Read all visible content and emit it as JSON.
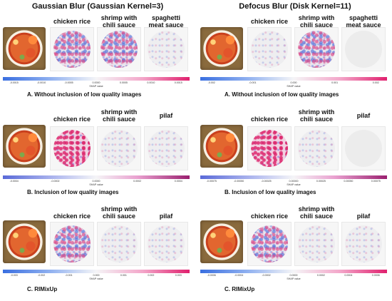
{
  "left": {
    "title": "Gaussian Blur (Gaussian Kernel=3)",
    "panels": [
      {
        "labels": [
          "chicken rice",
          "shrimp with chili sauce",
          "spaghetti meat sauce"
        ],
        "ticks": [
          "-0.0015",
          "-0.0010",
          "-0.0005",
          "0.0000",
          "0.0005",
          "0.0010",
          "0.0015"
        ],
        "cbar_label": "SHAP value",
        "caption": "A.  Without inclusion of low quality images"
      },
      {
        "labels": [
          "chicken rice",
          "shrimp with chili sauce",
          "pilaf"
        ],
        "ticks": [
          "-0.0004",
          "-0.0002",
          "0.0000",
          "0.0002",
          "0.0004"
        ],
        "cbar_label": "SHAP value",
        "caption": "B.   Inclusion of low quality images"
      },
      {
        "labels": [
          "chicken rice",
          "shrimp with chili sauce",
          "pilaf"
        ],
        "ticks": [
          "-0.003",
          "-0.002",
          "-0.001",
          "0.000",
          "0.001",
          "0.002",
          "0.003"
        ],
        "cbar_label": "SHAP value",
        "caption": "C.   RIMixUp"
      }
    ]
  },
  "right": {
    "title": "Defocus Blur (Disk Kernel=11)",
    "panels": [
      {
        "labels": [
          "chicken rice",
          "shrimp with chili sauce",
          "spaghetti meat sauce"
        ],
        "ticks": [
          "-0.002",
          "-0.001",
          "0.000",
          "0.001",
          "0.002"
        ],
        "cbar_label": "SHAP value",
        "caption": "A.  Without inclusion of low quality images"
      },
      {
        "labels": [
          "chicken rice",
          "shrimp with chili sauce",
          "pilaf"
        ],
        "ticks": [
          "-0.00075",
          "-0.00050",
          "-0.00025",
          "0.00000",
          "0.00025",
          "0.00050",
          "0.00075"
        ],
        "cbar_label": "SHAP value",
        "caption": "B.   Inclusion of low quality images"
      },
      {
        "labels": [
          "chicken rice",
          "shrimp with chili sauce",
          "pilaf"
        ],
        "ticks": [
          "-0.0006",
          "-0.0004",
          "-0.0002",
          "0.0000",
          "0.0002",
          "0.0004",
          "0.0006"
        ],
        "cbar_label": "SHAP value",
        "caption": "C.   RIMixUp"
      }
    ]
  }
}
